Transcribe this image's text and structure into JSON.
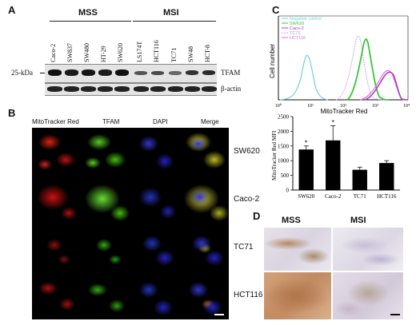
{
  "panel_a": {
    "label": "A",
    "group_mss": "MSS",
    "group_msi": "MSI",
    "lanes": [
      "Caco-2",
      "SW837",
      "SW480",
      "HT-29",
      "SW620",
      "LS174T",
      "HCT116",
      "TC71",
      "SW48",
      "HCT-8"
    ],
    "marker": "25-kDa",
    "bands": [
      "TFAM",
      "β-actin"
    ]
  },
  "panel_b": {
    "label": "B",
    "columns": [
      "MitoTracker Red",
      "TFAM",
      "DAPI",
      "Merge"
    ],
    "rows": [
      "SW620",
      "Caco-2",
      "TC71",
      "HCT116"
    ]
  },
  "panel_c": {
    "label": "C",
    "histogram": {
      "ylabel": "Cell number",
      "xlabel": "MitoTracker Red",
      "xticks": [
        "10⁰",
        "10¹",
        "10²",
        "10³",
        "10⁴"
      ],
      "legend": [
        {
          "name": "Negative control",
          "color": "#6fd0d8"
        },
        {
          "name": "SW620",
          "color": "#39c43a"
        },
        {
          "name": "Caco-2",
          "color": "#a83fbf"
        },
        {
          "name": "TC71",
          "color": "#c9a9e6"
        },
        {
          "name": "HCT116",
          "color": "#e070d8"
        }
      ]
    }
  },
  "chart_data": {
    "type": "bar",
    "categories": [
      "SW620",
      "Caco-2",
      "TC71",
      "HCT116"
    ],
    "values": [
      1380,
      1690,
      690,
      920
    ],
    "errors": [
      120,
      500,
      90,
      80
    ],
    "significance": [
      "*",
      "*",
      "",
      ""
    ],
    "ylabel": "MitoTracker Red MFI",
    "ylim": [
      0,
      2500
    ],
    "yticks": [
      0,
      500,
      1000,
      1500,
      2000,
      2500
    ],
    "bar_color": "#000000"
  },
  "panel_d": {
    "label": "D",
    "group_mss": "MSS",
    "group_msi": "MSI"
  }
}
